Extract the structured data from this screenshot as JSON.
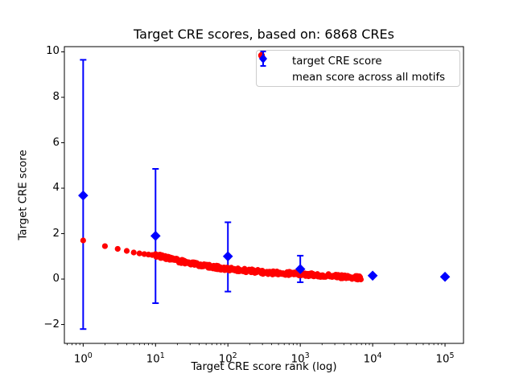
{
  "chart_data": {
    "type": "scatter",
    "title": "Target CRE scores, based on: 6868 CREs",
    "xlabel": "Target CRE score rank (log)",
    "ylabel": "Target CRE score",
    "x_scale": "log",
    "grid": false,
    "legend_position": "upper right",
    "xlim": [
      0.55,
      180000
    ],
    "ylim": [
      -2.83,
      10.23
    ],
    "yticks": [
      -2,
      0,
      2,
      4,
      6,
      8,
      10
    ],
    "xtick_label_base": "10",
    "xtick_exponents": [
      0,
      1,
      2,
      3,
      4,
      5
    ],
    "background_color": "#ffffff",
    "axis_color": "#000000",
    "series": [
      {
        "name": "target CRE score",
        "marker": "circle",
        "color": "#ff0000",
        "n_total_points": 6868,
        "head_points": [
          [
            1,
            1.7
          ],
          [
            2,
            1.45
          ],
          [
            3,
            1.33
          ],
          [
            4,
            1.24
          ],
          [
            5,
            1.17
          ],
          [
            6,
            1.13
          ],
          [
            7,
            1.1
          ],
          [
            8,
            1.08
          ],
          [
            9,
            1.06
          ]
        ],
        "curve_control_points": [
          [
            10,
            1.05
          ],
          [
            18,
            0.85
          ],
          [
            32,
            0.67
          ],
          [
            56,
            0.55
          ],
          [
            100,
            0.45
          ],
          [
            180,
            0.37
          ],
          [
            320,
            0.3
          ],
          [
            560,
            0.26
          ],
          [
            1000,
            0.22
          ],
          [
            1800,
            0.17
          ],
          [
            3200,
            0.12
          ],
          [
            5600,
            0.07
          ],
          [
            6868,
            0.05
          ]
        ]
      },
      {
        "name": "mean score across all motifs",
        "marker": "diamond",
        "color": "#0000ff",
        "points": [
          {
            "x": 1,
            "y": 3.68,
            "lo": -2.2,
            "hi": 9.65
          },
          {
            "x": 10,
            "y": 1.9,
            "lo": -1.06,
            "hi": 4.85
          },
          {
            "x": 100,
            "y": 1.0,
            "lo": -0.55,
            "hi": 2.5
          },
          {
            "x": 1000,
            "y": 0.44,
            "lo": -0.14,
            "hi": 1.03
          },
          {
            "x": 10000,
            "y": 0.15,
            "lo": 0.15,
            "hi": 0.15
          },
          {
            "x": 100000,
            "y": 0.1,
            "lo": 0.1,
            "hi": 0.1
          }
        ]
      }
    ]
  }
}
